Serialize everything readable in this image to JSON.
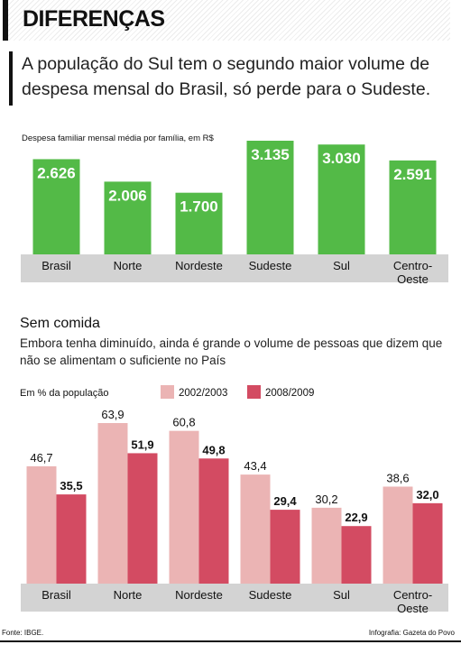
{
  "header": {
    "title": "DIFERENÇAS"
  },
  "intro": {
    "text": "A população do Sul tem o segundo maior volume de despesa mensal do Brasil, só perde para o Sudeste."
  },
  "chart_data": [
    {
      "type": "bar",
      "title": "",
      "ylabel": "Despesa familiar mensal média por família, em R$",
      "categories": [
        "Brasil",
        "Norte",
        "Nordeste",
        "Sudeste",
        "Sul",
        "Centro-Oeste"
      ],
      "values": [
        2626,
        2006,
        1700,
        3135,
        3030,
        2591
      ],
      "value_labels": [
        "2.626",
        "2.006",
        "1.700",
        "3.135",
        "3.030",
        "2.591"
      ],
      "colors": {
        "bar": "#53ba47",
        "axis_band": "#d3d3d3"
      }
    },
    {
      "type": "bar",
      "title": "Sem comida",
      "subtitle": "Embora tenha diminuído, ainda é grande o volume de pessoas que dizem que não se alimentam o suficiente no País",
      "ylabel": "Em % da população",
      "categories": [
        "Brasil",
        "Norte",
        "Nordeste",
        "Sudeste",
        "Sul",
        "Centro-Oeste"
      ],
      "series": [
        {
          "name": "2002/2003",
          "values": [
            46.7,
            63.9,
            60.8,
            43.4,
            30.2,
            38.6
          ],
          "labels": [
            "46,7",
            "63,9",
            "60,8",
            "43,4",
            "30,2",
            "38,6"
          ],
          "color": "#ebb4b4"
        },
        {
          "name": "2008/2009",
          "values": [
            35.5,
            51.9,
            49.8,
            29.4,
            22.9,
            32.0
          ],
          "labels": [
            "35,5",
            "51,9",
            "49,8",
            "29,4",
            "22,9",
            "32,0"
          ],
          "color": "#d34b62"
        }
      ],
      "colors": {
        "axis_band": "#d3d3d3"
      }
    }
  ],
  "footer": {
    "source": "Fonte: IBGE.",
    "credit": "Infografia: Gazeta do Povo"
  }
}
